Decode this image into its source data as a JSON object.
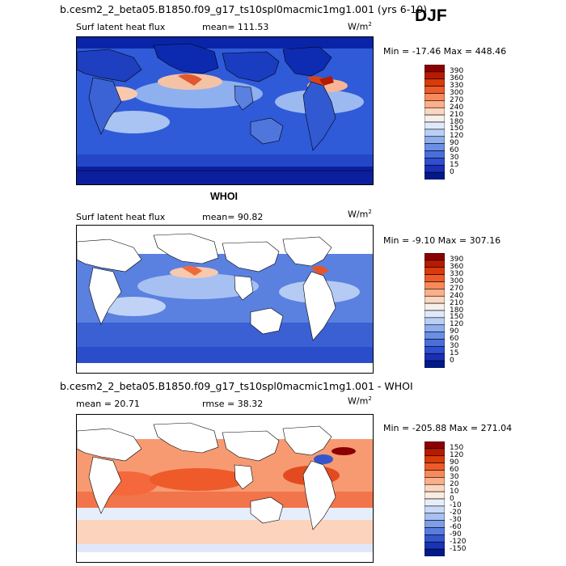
{
  "season": "DJF",
  "panel1": {
    "title": "b.cesm2_2_beta05.B1850.f09_g17_ts10spl0macmic1mg1.001 (yrs 6-10)",
    "field": "Surf latent heat flux",
    "mean": "mean=  111.53",
    "units": "W/m",
    "units_exp": "2",
    "minmax": "Min = -17.46 Max = 448.46",
    "levels": [
      "390",
      "360",
      "330",
      "300",
      "270",
      "240",
      "210",
      "180",
      "150",
      "120",
      "90",
      "60",
      "30",
      "15",
      "0"
    ]
  },
  "panel2": {
    "title": "WHOI",
    "field": "Surf latent heat flux",
    "mean": "mean=   90.82",
    "units": "W/m",
    "units_exp": "2",
    "minmax": "Min =  -9.10 Max = 307.16",
    "levels": [
      "390",
      "360",
      "330",
      "300",
      "270",
      "240",
      "210",
      "180",
      "150",
      "120",
      "90",
      "60",
      "30",
      "15",
      "0"
    ]
  },
  "panel3": {
    "title": "b.cesm2_2_beta05.B1850.f09_g17_ts10spl0macmic1mg1.001 - WHOI",
    "mean": "mean =   20.71",
    "rmse": "rmse =   38.32",
    "units": "W/m",
    "units_exp": "2",
    "minmax": "Min = -205.88 Max = 271.04",
    "levels": [
      "150",
      "120",
      "90",
      "60",
      "30",
      "20",
      "10",
      "0",
      "-10",
      "-20",
      "-30",
      "-60",
      "-90",
      "-120",
      "-150"
    ]
  },
  "colors": {
    "abs_scale": [
      "#8b0000",
      "#b81a00",
      "#d93b0a",
      "#ee5a2a",
      "#f78a5a",
      "#fbb08a",
      "#fdd6bf",
      "#f7f0ea",
      "#dfe9fb",
      "#b9cff6",
      "#8faeee",
      "#6b8ee6",
      "#4a6edb",
      "#2f4fcf",
      "#1a2fb5",
      "#001a8c"
    ],
    "diff_scale": [
      "#8b0000",
      "#b81a00",
      "#d93b0a",
      "#ee5a2a",
      "#f78a5a",
      "#fbb08a",
      "#fdd6bf",
      "#fcebdf",
      "#e6eefc",
      "#c9d9f8",
      "#a9c0f2",
      "#7f9ee9",
      "#5a7ddd",
      "#3456cd",
      "#1a34b3",
      "#001a8c"
    ]
  }
}
